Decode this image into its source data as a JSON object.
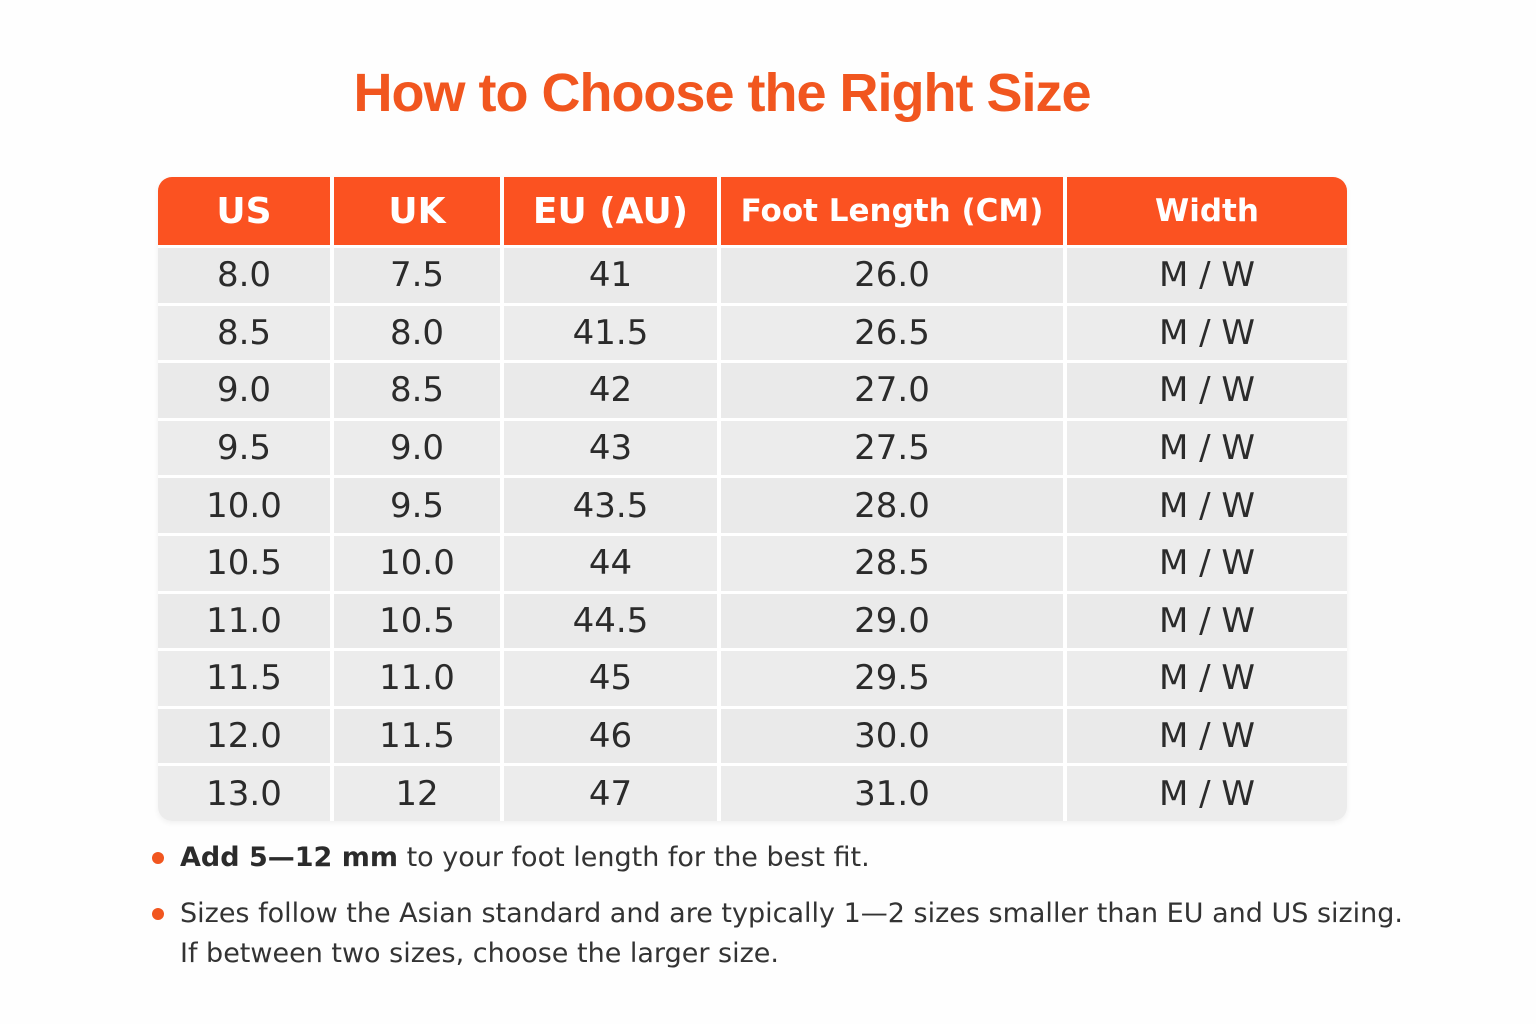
{
  "title": "How to Choose the Right Size",
  "table": {
    "headers": [
      "US",
      "UK",
      "EU (AU)",
      "Foot Length (CM)",
      "Width"
    ],
    "rows": [
      [
        "8.0",
        "7.5",
        "41",
        "26.0",
        "M / W"
      ],
      [
        "8.5",
        "8.0",
        "41.5",
        "26.5",
        "M / W"
      ],
      [
        "9.0",
        "8.5",
        "42",
        "27.0",
        "M / W"
      ],
      [
        "9.5",
        "9.0",
        "43",
        "27.5",
        "M / W"
      ],
      [
        "10.0",
        "9.5",
        "43.5",
        "28.0",
        "M / W"
      ],
      [
        "10.5",
        "10.0",
        "44",
        "28.5",
        "M / W"
      ],
      [
        "11.0",
        "10.5",
        "44.5",
        "29.0",
        "M / W"
      ],
      [
        "11.5",
        "11.0",
        "45",
        "29.5",
        "M / W"
      ],
      [
        "12.0",
        "11.5",
        "46",
        "30.0",
        "M / W"
      ],
      [
        "13.0",
        "12",
        "47",
        "31.0",
        "M / W"
      ]
    ]
  },
  "notes": {
    "note1_bold": "Add 5—12 mm",
    "note1_rest": " to your foot length for the best fit.",
    "note2_line1": "Sizes follow the Asian standard and are typically 1—2 sizes smaller than EU and US sizing.",
    "note2_line2": "If between two sizes, choose the larger size."
  },
  "colors": {
    "accent": "#f1561f",
    "header_bg": "#fb5221",
    "row_bg": "#ececec"
  }
}
